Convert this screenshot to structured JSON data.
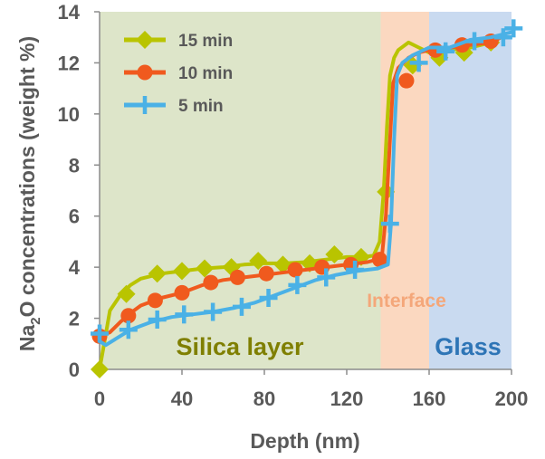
{
  "chart_data": {
    "type": "line",
    "title": "",
    "xlabel": "Depth (nm)",
    "ylabel_prefix": "Na",
    "ylabel_subscript": "2",
    "ylabel_suffix": "O concentrations (weight %)",
    "xlim": [
      0,
      200
    ],
    "ylim": [
      0,
      14
    ],
    "xticks": [
      0,
      40,
      80,
      120,
      160,
      200
    ],
    "yticks": [
      0,
      2,
      4,
      6,
      8,
      10,
      12,
      14
    ],
    "grid": "none",
    "legend_position": "top-left",
    "regions": [
      {
        "label": "Silica layer",
        "x_range": [
          0,
          136.5
        ],
        "fill": "#dde5c9",
        "label_color": "#7f7f00"
      },
      {
        "label": "Interface",
        "x_range": [
          136.5,
          160
        ],
        "fill": "#fbd8c0",
        "label_color": "#f4a77a"
      },
      {
        "label": "Glass",
        "x_range": [
          160,
          200
        ],
        "fill": "#c9daf0",
        "label_color": "#2e75b6"
      }
    ],
    "series": [
      {
        "name": "15 min",
        "color": "#b9c400",
        "marker": "diamond",
        "line": [
          [
            0,
            0
          ],
          [
            2,
            0.9
          ],
          [
            5,
            2.3
          ],
          [
            10,
            2.9
          ],
          [
            15,
            3.3
          ],
          [
            20,
            3.55
          ],
          [
            30,
            3.75
          ],
          [
            40,
            3.85
          ],
          [
            50,
            3.95
          ],
          [
            60,
            4.0
          ],
          [
            70,
            4.1
          ],
          [
            80,
            4.15
          ],
          [
            90,
            4.15
          ],
          [
            100,
            4.2
          ],
          [
            110,
            4.3
          ],
          [
            120,
            4.4
          ],
          [
            128,
            4.4
          ],
          [
            133,
            4.45
          ],
          [
            136,
            5.0
          ],
          [
            138,
            7.0
          ],
          [
            139.5,
            9.5
          ],
          [
            141,
            11.5
          ],
          [
            143,
            12.2
          ],
          [
            145,
            12.5
          ],
          [
            150,
            12.8
          ],
          [
            155,
            12.6
          ],
          [
            160,
            12.4
          ],
          [
            170,
            12.5
          ],
          [
            180,
            12.6
          ],
          [
            190,
            12.8
          ],
          [
            195,
            13.0
          ]
        ],
        "markers": [
          [
            0,
            0
          ],
          [
            13,
            2.95
          ],
          [
            28,
            3.75
          ],
          [
            40,
            3.85
          ],
          [
            51,
            3.95
          ],
          [
            64,
            4.0
          ],
          [
            77,
            4.25
          ],
          [
            89,
            4.1
          ],
          [
            102,
            4.15
          ],
          [
            114,
            4.5
          ],
          [
            127,
            4.4
          ],
          [
            139,
            6.95
          ],
          [
            152,
            11.9
          ],
          [
            165,
            12.2
          ],
          [
            177,
            12.4
          ],
          [
            190,
            12.8
          ]
        ]
      },
      {
        "name": "10 min",
        "color": "#f05a1e",
        "marker": "circle",
        "line": [
          [
            0,
            1.3
          ],
          [
            5,
            1.45
          ],
          [
            10,
            1.85
          ],
          [
            15,
            2.2
          ],
          [
            20,
            2.5
          ],
          [
            30,
            2.8
          ],
          [
            40,
            3.0
          ],
          [
            50,
            3.3
          ],
          [
            60,
            3.5
          ],
          [
            70,
            3.6
          ],
          [
            80,
            3.7
          ],
          [
            90,
            3.8
          ],
          [
            100,
            3.9
          ],
          [
            110,
            4.0
          ],
          [
            120,
            4.1
          ],
          [
            130,
            4.2
          ],
          [
            137,
            4.35
          ],
          [
            139,
            6.0
          ],
          [
            141,
            9.0
          ],
          [
            142.5,
            11.2
          ],
          [
            145,
            11.8
          ],
          [
            150,
            12.2
          ],
          [
            155,
            12.4
          ],
          [
            160,
            12.5
          ],
          [
            170,
            12.6
          ],
          [
            180,
            12.7
          ],
          [
            190,
            12.8
          ],
          [
            195,
            13.0
          ]
        ],
        "markers": [
          [
            0,
            1.3
          ],
          [
            14,
            2.1
          ],
          [
            27,
            2.7
          ],
          [
            40,
            3.0
          ],
          [
            54,
            3.4
          ],
          [
            67,
            3.6
          ],
          [
            81,
            3.75
          ],
          [
            95,
            3.9
          ],
          [
            108,
            4.0
          ],
          [
            122,
            4.1
          ],
          [
            136,
            4.3
          ],
          [
            149,
            11.3
          ],
          [
            163,
            12.5
          ],
          [
            176,
            12.7
          ],
          [
            190,
            12.85
          ]
        ]
      },
      {
        "name": "5 min",
        "color": "#4ab1e6",
        "marker": "cross",
        "line": [
          [
            0,
            1.1
          ],
          [
            3,
            0.95
          ],
          [
            8,
            1.2
          ],
          [
            15,
            1.55
          ],
          [
            25,
            1.85
          ],
          [
            35,
            2.05
          ],
          [
            45,
            2.15
          ],
          [
            55,
            2.25
          ],
          [
            65,
            2.4
          ],
          [
            75,
            2.6
          ],
          [
            85,
            2.9
          ],
          [
            95,
            3.2
          ],
          [
            105,
            3.5
          ],
          [
            115,
            3.7
          ],
          [
            125,
            3.85
          ],
          [
            135,
            3.95
          ],
          [
            140,
            4.1
          ],
          [
            141.5,
            5.7
          ],
          [
            143,
            9.0
          ],
          [
            144.5,
            11.5
          ],
          [
            147,
            12.0
          ],
          [
            152,
            12.3
          ],
          [
            160,
            12.6
          ],
          [
            170,
            12.6
          ],
          [
            180,
            12.9
          ],
          [
            190,
            13.0
          ],
          [
            200,
            13.2
          ]
        ],
        "markers": [
          [
            0,
            1.4
          ],
          [
            14,
            1.55
          ],
          [
            28,
            1.95
          ],
          [
            41,
            2.15
          ],
          [
            55,
            2.25
          ],
          [
            69,
            2.45
          ],
          [
            82,
            2.8
          ],
          [
            96,
            3.3
          ],
          [
            110,
            3.6
          ],
          [
            124,
            3.9
          ],
          [
            141,
            5.7
          ],
          [
            155,
            12.0
          ],
          [
            168,
            12.45
          ],
          [
            182,
            12.85
          ],
          [
            196,
            13.0
          ],
          [
            201,
            13.35
          ]
        ]
      }
    ]
  }
}
